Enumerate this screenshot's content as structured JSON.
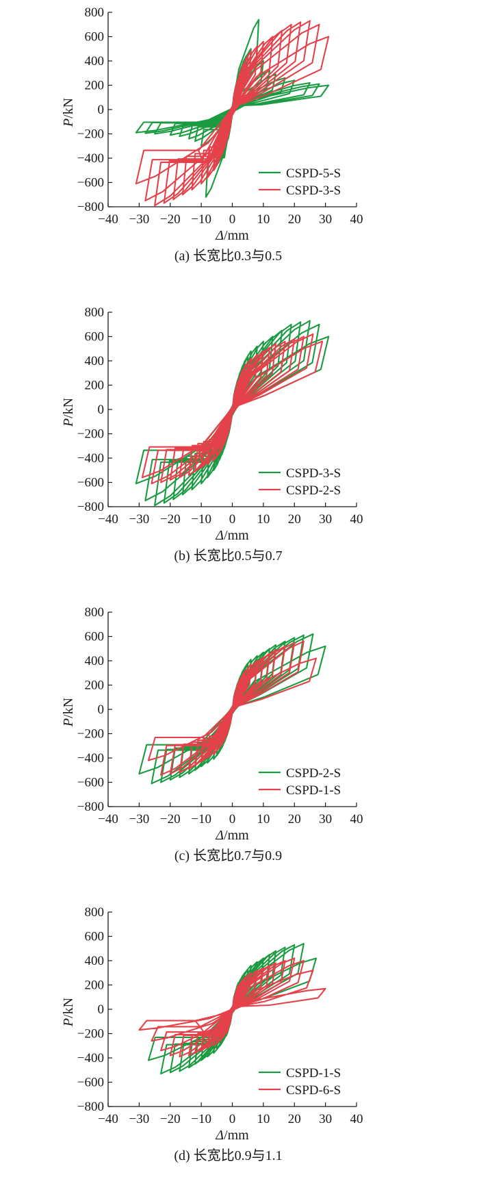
{
  "colors": {
    "green": "#1a9a41",
    "red": "#e5414a",
    "axis": "#1a1a1a"
  },
  "chart_data": [
    {
      "type": "line",
      "caption": "(a) 长宽比0.3与0.5",
      "xlabel_var": "Δ",
      "xlabel_unit": "/mm",
      "ylabel_var": "P",
      "ylabel_unit": "/kN",
      "xlim": [
        -40,
        40
      ],
      "ylim": [
        -800,
        800
      ],
      "xticks": [
        "−40",
        "−30",
        "−20",
        "−10",
        "0",
        "10",
        "20",
        "30",
        "40"
      ],
      "yticks": [
        "800",
        "600",
        "400",
        "200",
        "0",
        "−200",
        "−400",
        "−600",
        "−800"
      ],
      "legend_position": "bottom-right",
      "series": [
        {
          "name": "CSPD-5-S",
          "color": "green",
          "amplitudes": [
            1.5,
            2.5,
            3.5,
            4.5,
            6,
            8.5,
            10,
            12,
            14,
            17,
            20,
            25,
            28,
            31
          ],
          "peak_pos": [
            220,
            300,
            380,
            440,
            500,
            740,
            400,
            320,
            290,
            260,
            240,
            220,
            210,
            200
          ],
          "peak_neg": [
            -220,
            -300,
            -380,
            -440,
            -480,
            -720,
            -300,
            -260,
            -240,
            -220,
            -210,
            -200,
            -195,
            -190
          ],
          "stiffness": 95,
          "gap": 320,
          "pinch": 0.3
        },
        {
          "name": "CSPD-3-S",
          "color": "red",
          "amplitudes": [
            2,
            3,
            4,
            5,
            6,
            8,
            10,
            13,
            16,
            19,
            22,
            25,
            28,
            31
          ],
          "peak_pos": [
            260,
            330,
            390,
            440,
            480,
            520,
            560,
            600,
            650,
            700,
            720,
            730,
            700,
            600
          ],
          "peak_neg": [
            -260,
            -340,
            -400,
            -450,
            -500,
            -560,
            -610,
            -660,
            -700,
            -740,
            -770,
            -790,
            -750,
            -610
          ],
          "stiffness": 80,
          "gap": 380,
          "pinch": 0.35
        }
      ]
    },
    {
      "type": "line",
      "caption": "(b) 长宽比0.5与0.7",
      "xlabel_var": "Δ",
      "xlabel_unit": "/mm",
      "ylabel_var": "P",
      "ylabel_unit": "/kN",
      "xlim": [
        -40,
        40
      ],
      "ylim": [
        -800,
        800
      ],
      "xticks": [
        "−40",
        "−30",
        "−20",
        "−10",
        "0",
        "10",
        "20",
        "30",
        "40"
      ],
      "yticks": [
        "800",
        "600",
        "400",
        "200",
        "0",
        "−200",
        "−400",
        "−600",
        "−800"
      ],
      "legend_position": "bottom-right",
      "series": [
        {
          "name": "CSPD-3-S",
          "color": "green",
          "amplitudes": [
            2,
            3,
            4,
            5,
            6,
            8,
            10,
            13,
            16,
            19,
            22,
            25,
            28,
            31
          ],
          "peak_pos": [
            260,
            330,
            390,
            440,
            480,
            520,
            560,
            600,
            650,
            700,
            720,
            730,
            700,
            600
          ],
          "peak_neg": [
            -260,
            -340,
            -400,
            -450,
            -500,
            -560,
            -610,
            -660,
            -700,
            -740,
            -770,
            -790,
            -750,
            -610
          ],
          "stiffness": 80,
          "gap": 380,
          "pinch": 0.35
        },
        {
          "name": "CSPD-2-S",
          "color": "red",
          "amplitudes": [
            2,
            3,
            4,
            5,
            6,
            8,
            10,
            12,
            14,
            17,
            20,
            23,
            26,
            29
          ],
          "peak_pos": [
            240,
            300,
            350,
            390,
            420,
            450,
            480,
            510,
            540,
            560,
            580,
            600,
            620,
            560
          ],
          "peak_neg": [
            -240,
            -300,
            -350,
            -390,
            -420,
            -450,
            -480,
            -510,
            -540,
            -560,
            -580,
            -600,
            -610,
            -560
          ],
          "stiffness": 75,
          "gap": 340,
          "pinch": 0.35
        }
      ]
    },
    {
      "type": "line",
      "caption": "(c) 长宽比0.7与0.9",
      "xlabel_var": "Δ",
      "xlabel_unit": "/mm",
      "ylabel_var": "P",
      "ylabel_unit": "/kN",
      "xlim": [
        -40,
        40
      ],
      "ylim": [
        -800,
        800
      ],
      "xticks": [
        "−40",
        "−30",
        "−20",
        "−10",
        "0",
        "10",
        "20",
        "30",
        "40"
      ],
      "yticks": [
        "800",
        "600",
        "400",
        "200",
        "0",
        "−200",
        "−400",
        "−600",
        "−800"
      ],
      "legend_position": "bottom-right",
      "series": [
        {
          "name": "CSPD-2-S",
          "color": "green",
          "amplitudes": [
            2,
            3,
            4,
            5,
            6,
            8,
            10,
            12,
            14,
            17,
            20,
            23,
            26,
            30
          ],
          "peak_pos": [
            230,
            290,
            340,
            380,
            410,
            440,
            470,
            500,
            530,
            560,
            590,
            610,
            620,
            520
          ],
          "peak_neg": [
            -230,
            -290,
            -340,
            -380,
            -410,
            -440,
            -470,
            -500,
            -530,
            -560,
            -580,
            -600,
            -610,
            -530
          ],
          "stiffness": 75,
          "gap": 320,
          "pinch": 0.35
        },
        {
          "name": "CSPD-1-S",
          "color": "red",
          "amplitudes": [
            2,
            3,
            4,
            5,
            6,
            8,
            10,
            12,
            14,
            17,
            20,
            23,
            27
          ],
          "peak_pos": [
            220,
            270,
            310,
            340,
            370,
            400,
            430,
            460,
            490,
            520,
            550,
            560,
            420
          ],
          "peak_neg": [
            -220,
            -270,
            -310,
            -340,
            -370,
            -400,
            -430,
            -460,
            -490,
            -520,
            -530,
            -540,
            -420
          ],
          "stiffness": 70,
          "gap": 290,
          "pinch": 0.35
        }
      ]
    },
    {
      "type": "line",
      "caption": "(d) 长宽比0.9与1.1",
      "xlabel_var": "Δ",
      "xlabel_unit": "/mm",
      "ylabel_var": "P",
      "ylabel_unit": "/kN",
      "xlim": [
        -40,
        40
      ],
      "ylim": [
        -800,
        800
      ],
      "xticks": [
        "−40",
        "−30",
        "−20",
        "−10",
        "0",
        "10",
        "20",
        "30",
        "40"
      ],
      "yticks": [
        "800",
        "600",
        "400",
        "200",
        "0",
        "−200",
        "−400",
        "−600",
        "−800"
      ],
      "legend_position": "bottom-right",
      "series": [
        {
          "name": "CSPD-1-S",
          "color": "green",
          "amplitudes": [
            2,
            3,
            4,
            5,
            6,
            8,
            10,
            12,
            14,
            17,
            20,
            23,
            27
          ],
          "peak_pos": [
            220,
            260,
            300,
            330,
            360,
            390,
            420,
            450,
            480,
            510,
            530,
            540,
            420
          ],
          "peak_neg": [
            -220,
            -260,
            -300,
            -330,
            -360,
            -390,
            -420,
            -450,
            -480,
            -510,
            -520,
            -530,
            -420
          ],
          "stiffness": 70,
          "gap": 280,
          "pinch": 0.35
        },
        {
          "name": "CSPD-6-S",
          "color": "red",
          "amplitudes": [
            2,
            3,
            4,
            5,
            6,
            8,
            10,
            12,
            14,
            17,
            20,
            23,
            26,
            30
          ],
          "peak_pos": [
            200,
            230,
            260,
            280,
            300,
            320,
            340,
            360,
            380,
            400,
            420,
            400,
            320,
            170
          ],
          "peak_neg": [
            -200,
            -230,
            -260,
            -280,
            -300,
            -320,
            -340,
            -360,
            -380,
            -390,
            -380,
            -340,
            -260,
            -170
          ],
          "stiffness": 65,
          "gap": 240,
          "pinch": 0.4
        }
      ]
    }
  ]
}
